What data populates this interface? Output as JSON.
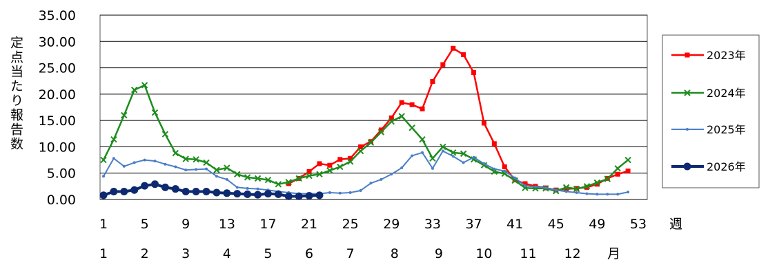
{
  "chart_data": {
    "type": "line",
    "ylabel": "定点当たり報告数",
    "xlabel": "週",
    "month_label": "月",
    "ylim": [
      0,
      35
    ],
    "xlim": [
      1,
      53
    ],
    "grid": true,
    "legend_position": "right",
    "y_ticks": [
      "0.00",
      "5.00",
      "10.00",
      "15.00",
      "20.00",
      "25.00",
      "30.00",
      "35.00"
    ],
    "x_ticks": [
      1,
      5,
      9,
      13,
      17,
      21,
      25,
      29,
      33,
      37,
      41,
      45,
      49,
      53
    ],
    "x_tick_labels": [
      "1",
      "5",
      "9",
      "13",
      "17",
      "21",
      "25",
      "29",
      "33",
      "37",
      "41",
      "45",
      "49",
      "53"
    ],
    "months": [
      {
        "label": "1",
        "week": 1
      },
      {
        "label": "2",
        "week": 5
      },
      {
        "label": "3",
        "week": 9
      },
      {
        "label": "4",
        "week": 13
      },
      {
        "label": "5",
        "week": 17
      },
      {
        "label": "6",
        "week": 21
      },
      {
        "label": "7",
        "week": 25
      },
      {
        "label": "8",
        "week": 29.3
      },
      {
        "label": "9",
        "week": 33.6
      },
      {
        "label": "10",
        "week": 38
      },
      {
        "label": "11",
        "week": 42.3
      },
      {
        "label": "12",
        "week": 46.6
      }
    ],
    "series": [
      {
        "name": "2023年",
        "color": "#ff0000",
        "marker": "square",
        "x": [
          19,
          20,
          21,
          22,
          23,
          24,
          25,
          26,
          27,
          28,
          29,
          30,
          31,
          32,
          33,
          34,
          35,
          36,
          37,
          38,
          39,
          40,
          41,
          42,
          43,
          44,
          45,
          46,
          47,
          48,
          49,
          50,
          51,
          52
        ],
        "values": [
          3.0,
          4.0,
          5.3,
          6.8,
          6.5,
          7.6,
          7.8,
          10.0,
          11.0,
          13.2,
          15.5,
          18.4,
          18.0,
          17.2,
          22.4,
          25.6,
          28.7,
          27.5,
          24.1,
          14.5,
          10.6,
          6.2,
          3.7,
          3.0,
          2.5,
          2.2,
          1.8,
          2.0,
          2.1,
          2.3,
          2.9,
          4.0,
          4.8,
          5.4
        ]
      },
      {
        "name": "2024年",
        "color": "#1e8c1e",
        "marker": "x",
        "x": [
          1,
          2,
          3,
          4,
          5,
          6,
          7,
          8,
          9,
          10,
          11,
          12,
          13,
          14,
          15,
          16,
          17,
          18,
          19,
          20,
          21,
          22,
          23,
          24,
          25,
          26,
          27,
          28,
          29,
          30,
          31,
          32,
          33,
          34,
          35,
          36,
          37,
          38,
          39,
          40,
          41,
          42,
          43,
          44,
          45,
          46,
          47,
          48,
          49,
          50,
          51,
          52
        ],
        "values": [
          7.5,
          11.4,
          16.0,
          20.8,
          21.7,
          16.5,
          12.4,
          8.8,
          7.7,
          7.6,
          7.0,
          5.6,
          6.0,
          4.8,
          4.2,
          4.0,
          3.7,
          2.9,
          3.3,
          4.0,
          4.5,
          4.8,
          5.5,
          6.2,
          7.2,
          9.2,
          10.8,
          12.8,
          14.8,
          15.8,
          13.6,
          11.4,
          7.8,
          10.0,
          8.9,
          8.7,
          7.6,
          6.5,
          5.3,
          4.9,
          3.6,
          2.2,
          2.1,
          2.1,
          1.6,
          2.3,
          2.0,
          2.5,
          3.2,
          3.9,
          5.9,
          7.5
        ]
      },
      {
        "name": "2025年",
        "color": "#4a7ec8",
        "marker": "dot",
        "x": [
          1,
          2,
          3,
          4,
          5,
          6,
          7,
          8,
          9,
          10,
          11,
          12,
          13,
          14,
          15,
          16,
          17,
          18,
          19,
          20,
          21,
          22,
          23,
          24,
          25,
          26,
          27,
          28,
          29,
          30,
          31,
          32,
          33,
          34,
          35,
          36,
          37,
          38,
          39,
          40,
          41,
          42,
          43,
          44,
          45,
          46,
          47,
          48,
          49,
          50,
          51,
          52
        ],
        "values": [
          4.4,
          7.8,
          6.3,
          7.0,
          7.5,
          7.3,
          6.7,
          6.2,
          5.6,
          5.7,
          5.8,
          4.4,
          3.8,
          2.3,
          2.1,
          2.0,
          1.8,
          1.5,
          1.3,
          1.1,
          1.1,
          1.1,
          1.3,
          1.2,
          1.3,
          1.7,
          3.1,
          3.8,
          4.8,
          6.0,
          8.3,
          8.9,
          5.9,
          9.2,
          8.2,
          7.0,
          8.0,
          6.8,
          5.8,
          5.4,
          4.1,
          2.6,
          2.4,
          2.2,
          1.8,
          1.5,
          1.3,
          1.1,
          1.0,
          1.0,
          1.0,
          1.4
        ]
      },
      {
        "name": "2026年",
        "color": "#0d2a70",
        "marker": "circle",
        "x": [
          1,
          2,
          3,
          4,
          5,
          6,
          7,
          8,
          9,
          10,
          11,
          12,
          13,
          14,
          15,
          16,
          17,
          18,
          19,
          20,
          21,
          22
        ],
        "values": [
          0.8,
          1.5,
          1.5,
          1.8,
          2.6,
          2.9,
          2.3,
          2.0,
          1.5,
          1.5,
          1.5,
          1.3,
          1.2,
          1.1,
          1.0,
          0.9,
          1.1,
          1.0,
          0.6,
          0.6,
          0.7,
          0.8
        ]
      }
    ]
  }
}
